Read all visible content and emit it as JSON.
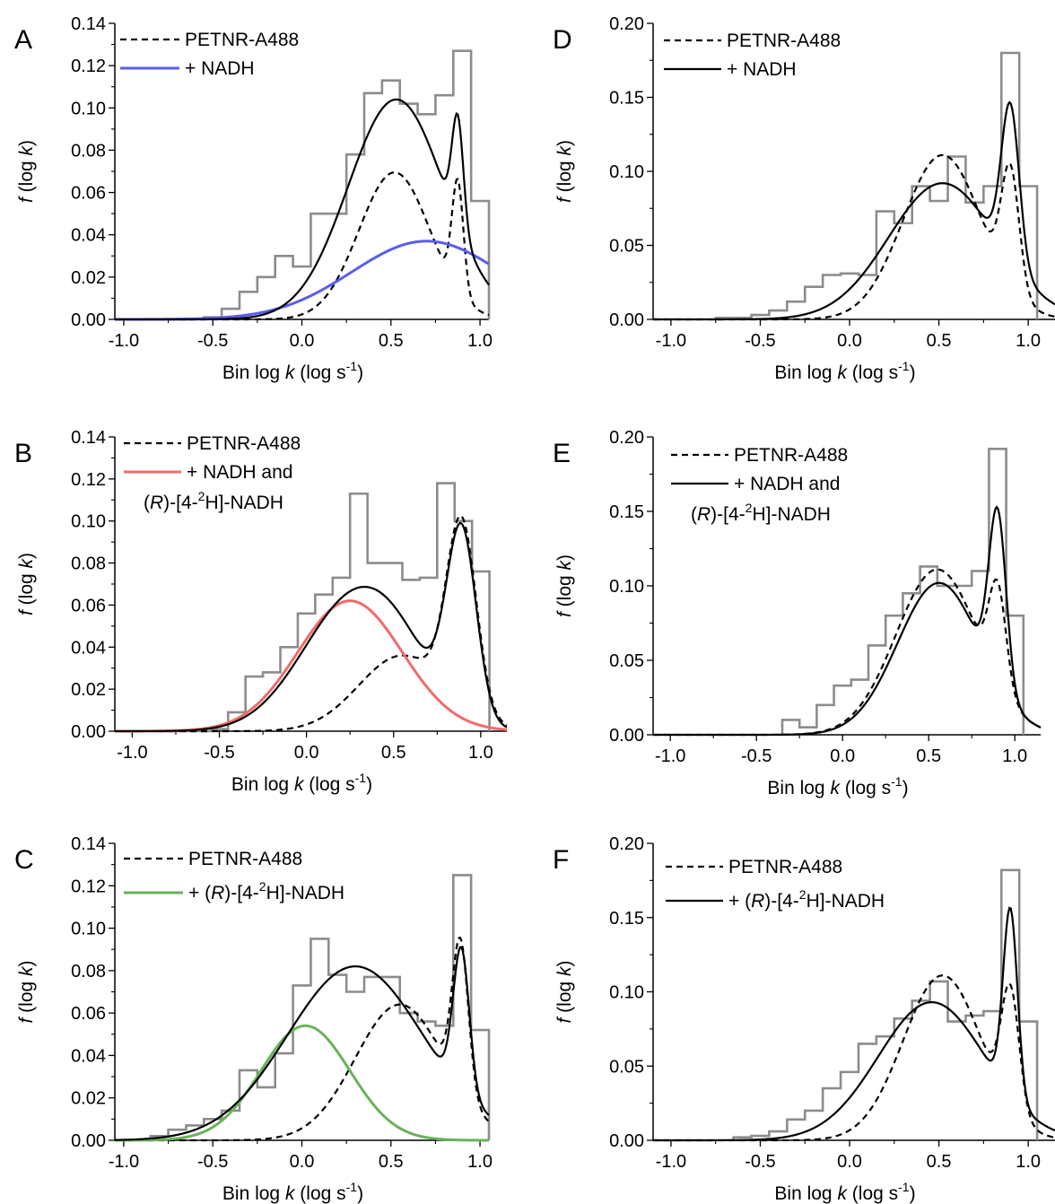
{
  "chart_data": [
    {
      "type": "line",
      "panel_label": "A",
      "xlabel": "Bin log k (log s-1)",
      "ylabel": "f (log k)",
      "xlim": [
        -1.05,
        1.05
      ],
      "ylim": [
        0,
        0.14
      ],
      "xticks": [
        "-1.0",
        "-0.5",
        "0.0",
        "0.5",
        "1.0"
      ],
      "yticks": [
        "0.00",
        "0.02",
        "0.04",
        "0.06",
        "0.08",
        "0.10",
        "0.12",
        "0.14"
      ],
      "legend": [
        {
          "label": "PETNR-A488",
          "style": "dashed",
          "color": "#000000"
        },
        {
          "label": "+ NADH",
          "style": "solid",
          "color": "#5b5bf0"
        }
      ],
      "histogram": {
        "color": "#8c8c8c",
        "edges": [
          -1.05,
          -0.95,
          -0.85,
          -0.75,
          -0.65,
          -0.55,
          -0.45,
          -0.35,
          -0.25,
          -0.15,
          -0.05,
          0.05,
          0.15,
          0.25,
          0.35,
          0.45,
          0.55,
          0.65,
          0.75,
          0.85,
          0.95,
          1.05
        ],
        "values": [
          0,
          0,
          0,
          0,
          0,
          0.001,
          0.005,
          0.013,
          0.02,
          0.03,
          0.025,
          0.05,
          0.05,
          0.078,
          0.107,
          0.113,
          0.102,
          0.097,
          0.106,
          0.127,
          0.056
        ]
      },
      "series": [
        {
          "style": "dashed",
          "color": "#000000",
          "comp": [
            {
              "a": 0.0695,
              "mu": 0.52,
              "sigma": 0.2
            },
            {
              "a": 0.052,
              "mu": 0.875,
              "sigma": 0.032
            }
          ]
        },
        {
          "style": "solid",
          "color": "#5b5bf0",
          "comp": [
            {
              "a": 0.037,
              "mu": 0.7,
              "sigma": 0.42
            }
          ]
        },
        {
          "style": "solid",
          "color": "#000000",
          "comp": [
            {
              "a": 0.104,
              "mu": 0.53,
              "sigma": 0.27
            },
            {
              "a": 0.051,
              "mu": 0.875,
              "sigma": 0.032
            }
          ]
        }
      ]
    },
    {
      "type": "line",
      "panel_label": "B",
      "xlabel": "Bin log k (log s-1)",
      "ylabel": "f (log k)",
      "xlim": [
        -1.1,
        1.15
      ],
      "ylim": [
        0,
        0.14
      ],
      "xticks": [
        "-1.0",
        "-0.5",
        "0.0",
        "0.5",
        "1.0"
      ],
      "yticks": [
        "0.00",
        "0.02",
        "0.04",
        "0.06",
        "0.08",
        "0.10",
        "0.12",
        "0.14"
      ],
      "legend": [
        {
          "label": "PETNR-A488",
          "style": "dashed",
          "color": "#000000"
        },
        {
          "label": "+ NADH and",
          "label2": "(R)-[4-2H]-NADH",
          "style": "solid",
          "color": "#f26a6a"
        }
      ],
      "histogram": {
        "color": "#8c8c8c",
        "edges": [
          -1.05,
          -0.95,
          -0.85,
          -0.75,
          -0.65,
          -0.55,
          -0.45,
          -0.35,
          -0.25,
          -0.15,
          -0.05,
          0.05,
          0.15,
          0.25,
          0.35,
          0.45,
          0.55,
          0.65,
          0.75,
          0.85,
          0.95,
          1.05
        ],
        "values": [
          0,
          0,
          0,
          0,
          0,
          0.001,
          0.009,
          0.026,
          0.028,
          0.04,
          0.056,
          0.065,
          0.073,
          0.113,
          0.08,
          0.08,
          0.072,
          0.073,
          0.118,
          0.1,
          0.076
        ]
      },
      "series": [
        {
          "style": "dashed",
          "color": "#000000",
          "comp": [
            {
              "a": 0.036,
              "mu": 0.55,
              "sigma": 0.25
            },
            {
              "a": 0.088,
              "mu": 0.89,
              "sigma": 0.085
            }
          ]
        },
        {
          "style": "solid",
          "color": "#f26a6a",
          "comp": [
            {
              "a": 0.062,
              "mu": 0.25,
              "sigma": 0.3
            }
          ]
        },
        {
          "style": "solid",
          "color": "#000000",
          "comp": [
            {
              "a": 0.063,
              "mu": 0.28,
              "sigma": 0.3
            },
            {
              "a": 0.012,
              "mu": 0.55,
              "sigma": 0.2
            },
            {
              "a": 0.088,
              "mu": 0.89,
              "sigma": 0.085
            }
          ]
        }
      ]
    },
    {
      "type": "line",
      "panel_label": "C",
      "xlabel": "Bin log k (log s-1)",
      "ylabel": "f (log k)",
      "xlim": [
        -1.05,
        1.05
      ],
      "ylim": [
        0,
        0.14
      ],
      "xticks": [
        "-1.0",
        "-0.5",
        "0.0",
        "0.5",
        "1.0"
      ],
      "yticks": [
        "0.00",
        "0.02",
        "0.04",
        "0.06",
        "0.08",
        "0.10",
        "0.12",
        "0.14"
      ],
      "legend": [
        {
          "label": "PETNR-A488",
          "style": "dashed",
          "color": "#000000"
        },
        {
          "label": "+ (R)-[4-2H]-NADH",
          "style": "solid",
          "color": "#6ab25a"
        }
      ],
      "histogram": {
        "color": "#8c8c8c",
        "edges": [
          -1.05,
          -0.95,
          -0.85,
          -0.75,
          -0.65,
          -0.55,
          -0.45,
          -0.35,
          -0.25,
          -0.15,
          -0.05,
          0.05,
          0.15,
          0.25,
          0.35,
          0.45,
          0.55,
          0.65,
          0.75,
          0.85,
          0.95,
          1.05
        ],
        "values": [
          0,
          0,
          0.002,
          0.005,
          0.007,
          0.01,
          0.014,
          0.033,
          0.025,
          0.041,
          0.073,
          0.095,
          0.078,
          0.07,
          0.077,
          0.077,
          0.06,
          0.056,
          0.054,
          0.125,
          0.052
        ]
      },
      "series": [
        {
          "style": "dashed",
          "color": "#000000",
          "comp": [
            {
              "a": 0.064,
              "mu": 0.55,
              "sigma": 0.25
            },
            {
              "a": 0.07,
              "mu": 0.89,
              "sigma": 0.045
            }
          ]
        },
        {
          "style": "solid",
          "color": "#6ab25a",
          "comp": [
            {
              "a": 0.054,
              "mu": 0.02,
              "sigma": 0.25
            }
          ]
        },
        {
          "style": "solid",
          "color": "#000000",
          "comp": [
            {
              "a": 0.082,
              "mu": 0.3,
              "sigma": 0.38
            },
            {
              "a": 0.067,
              "mu": 0.895,
              "sigma": 0.045
            }
          ]
        }
      ]
    },
    {
      "type": "line",
      "panel_label": "D",
      "xlabel": "Bin log k (log s-1)",
      "ylabel": "f (log k)",
      "xlim": [
        -1.1,
        1.15
      ],
      "ylim": [
        0,
        0.2
      ],
      "xticks": [
        "-1.0",
        "-0.5",
        "0.0",
        "0.5",
        "1.0"
      ],
      "yticks": [
        "0.00",
        "0.05",
        "0.10",
        "0.15",
        "0.20"
      ],
      "legend": [
        {
          "label": "PETNR-A488",
          "style": "dashed",
          "color": "#000000"
        },
        {
          "label": "+ NADH",
          "style": "solid",
          "color": "#000000"
        }
      ],
      "histogram": {
        "color": "#8c8c8c",
        "edges": [
          -0.75,
          -0.65,
          -0.55,
          -0.45,
          -0.35,
          -0.25,
          -0.15,
          -0.05,
          0.05,
          0.15,
          0.25,
          0.35,
          0.45,
          0.55,
          0.65,
          0.75,
          0.85,
          0.95,
          1.05
        ],
        "values": [
          0.001,
          0.001,
          0.003,
          0.006,
          0.012,
          0.022,
          0.03,
          0.031,
          0.03,
          0.073,
          0.065,
          0.09,
          0.08,
          0.11,
          0.079,
          0.09,
          0.18,
          0.09
        ]
      },
      "series": [
        {
          "style": "dashed",
          "color": "#000000",
          "comp": [
            {
              "a": 0.111,
              "mu": 0.52,
              "sigma": 0.22
            },
            {
              "a": 0.08,
              "mu": 0.9,
              "sigma": 0.05
            }
          ]
        },
        {
          "style": "solid",
          "color": "#000000",
          "comp": [
            {
              "a": 0.092,
              "mu": 0.52,
              "sigma": 0.3
            },
            {
              "a": 0.105,
              "mu": 0.9,
              "sigma": 0.05
            }
          ]
        }
      ]
    },
    {
      "type": "line",
      "panel_label": "E",
      "xlabel": "Bin log k (log s-1)",
      "ylabel": "f (log k)",
      "xlim": [
        -1.1,
        1.15
      ],
      "ylim": [
        0,
        0.2
      ],
      "xticks": [
        "-1.0",
        "-0.5",
        "0.0",
        "0.5",
        "1.0"
      ],
      "yticks": [
        "0.00",
        "0.05",
        "0.10",
        "0.15",
        "0.20"
      ],
      "legend": [
        {
          "label": "PETNR-A488",
          "style": "dashed",
          "color": "#000000"
        },
        {
          "label": "+ NADH and",
          "label2": "(R)-[4-2H]-NADH",
          "style": "solid",
          "color": "#000000"
        }
      ],
      "histogram": {
        "color": "#8c8c8c",
        "edges": [
          -0.35,
          -0.25,
          -0.15,
          -0.05,
          0.05,
          0.15,
          0.25,
          0.35,
          0.45,
          0.55,
          0.65,
          0.75,
          0.85,
          0.95,
          1.05
        ],
        "values": [
          0.01,
          0.005,
          0.02,
          0.033,
          0.037,
          0.06,
          0.08,
          0.095,
          0.113,
          0.1,
          0.1,
          0.11,
          0.192,
          0.08
        ]
      },
      "series": [
        {
          "style": "dashed",
          "color": "#000000",
          "comp": [
            {
              "a": 0.111,
              "mu": 0.55,
              "sigma": 0.24
            },
            {
              "a": 0.065,
              "mu": 0.9,
              "sigma": 0.05
            }
          ]
        },
        {
          "style": "solid",
          "color": "#000000",
          "comp": [
            {
              "a": 0.102,
              "mu": 0.56,
              "sigma": 0.24
            },
            {
              "a": 0.115,
              "mu": 0.9,
              "sigma": 0.05
            }
          ]
        }
      ]
    },
    {
      "type": "line",
      "panel_label": "F",
      "xlabel": "Bin log k (log s-1)",
      "ylabel": "f (log k)",
      "xlim": [
        -1.1,
        1.15
      ],
      "ylim": [
        0,
        0.2
      ],
      "xticks": [
        "-1.0",
        "-0.5",
        "0.0",
        "0.5",
        "1.0"
      ],
      "yticks": [
        "0.00",
        "0.05",
        "0.10",
        "0.15",
        "0.20"
      ],
      "legend": [
        {
          "label": "PETNR-A488",
          "style": "dashed",
          "color": "#000000"
        },
        {
          "label": "+ (R)-[4-2H]-NADH",
          "style": "solid",
          "color": "#000000"
        }
      ],
      "histogram": {
        "color": "#8c8c8c",
        "edges": [
          -0.65,
          -0.55,
          -0.45,
          -0.35,
          -0.25,
          -0.15,
          -0.05,
          0.05,
          0.15,
          0.25,
          0.35,
          0.45,
          0.55,
          0.65,
          0.75,
          0.85,
          0.95,
          1.05
        ],
        "values": [
          0.002,
          0.003,
          0.006,
          0.014,
          0.02,
          0.035,
          0.046,
          0.065,
          0.07,
          0.082,
          0.094,
          0.107,
          0.08,
          0.084,
          0.087,
          0.182,
          0.08
        ]
      },
      "series": [
        {
          "style": "dashed",
          "color": "#000000",
          "comp": [
            {
              "a": 0.111,
              "mu": 0.52,
              "sigma": 0.22
            },
            {
              "a": 0.08,
              "mu": 0.9,
              "sigma": 0.05
            }
          ]
        },
        {
          "style": "solid",
          "color": "#000000",
          "comp": [
            {
              "a": 0.093,
              "mu": 0.46,
              "sigma": 0.3
            },
            {
              "a": 0.125,
              "mu": 0.9,
              "sigma": 0.04
            }
          ]
        }
      ]
    }
  ]
}
